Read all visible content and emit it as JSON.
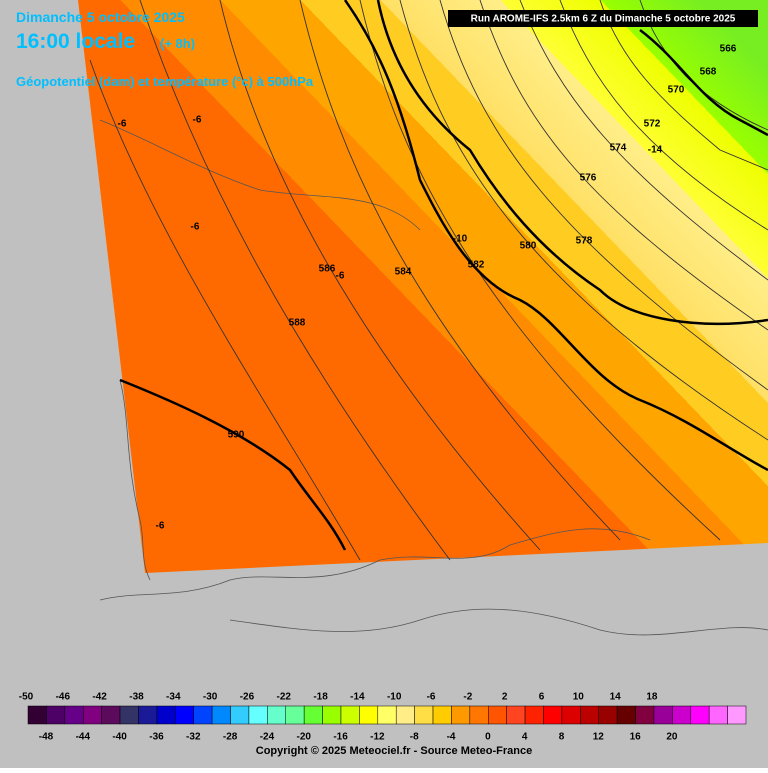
{
  "header": {
    "date": "Dimanche 5 octobre 2025",
    "time": "16:00 locale",
    "offset": "(+ 8h)",
    "subtitle": "Géopotentiel (dam) et température (°c) à 500hPa",
    "run": "Run AROME-IFS 2.5km 6 Z du Dimanche 5 octobre 2025"
  },
  "map": {
    "geopotential_labels": [
      "566",
      "568",
      "570",
      "572",
      "574",
      "576",
      "578",
      "580",
      "582",
      "584",
      "586",
      "588",
      "590"
    ],
    "temperature_labels": [
      "-6",
      "-6",
      "-6",
      "-6",
      "-6",
      "-10",
      "-14"
    ]
  },
  "legend": {
    "top_labels": [
      -50,
      -46,
      -42,
      -38,
      -34,
      -30,
      -26,
      -22,
      -18,
      -14,
      -10,
      -6,
      -2,
      2,
      6,
      10,
      14,
      18
    ],
    "bottom_labels": [
      -48,
      -44,
      -40,
      -36,
      -32,
      -28,
      -24,
      -20,
      -16,
      -12,
      -8,
      -4,
      0,
      4,
      8,
      12,
      16,
      20
    ],
    "colors": [
      "#330033",
      "#4d0066",
      "#660088",
      "#800080",
      "#5c0a5c",
      "#333366",
      "#1a1a99",
      "#0000cc",
      "#0000ff",
      "#0044ff",
      "#0088ff",
      "#33ccff",
      "#66ffff",
      "#66ffcc",
      "#66ff99",
      "#66ff33",
      "#99ff00",
      "#ccff00",
      "#ffff00",
      "#ffff66",
      "#ffee88",
      "#ffdd44",
      "#ffcc00",
      "#ff9900",
      "#ff7700",
      "#ff5500",
      "#ff4422",
      "#ff2200",
      "#ff0000",
      "#dd0000",
      "#bb0000",
      "#990000",
      "#660000",
      "#800040",
      "#990099",
      "#cc00cc",
      "#ff00ff",
      "#ff66ff",
      "#ff99ff"
    ]
  },
  "footer": {
    "copyright": "Copyright © 2025 Meteociel.fr - Source Meteo-France"
  }
}
